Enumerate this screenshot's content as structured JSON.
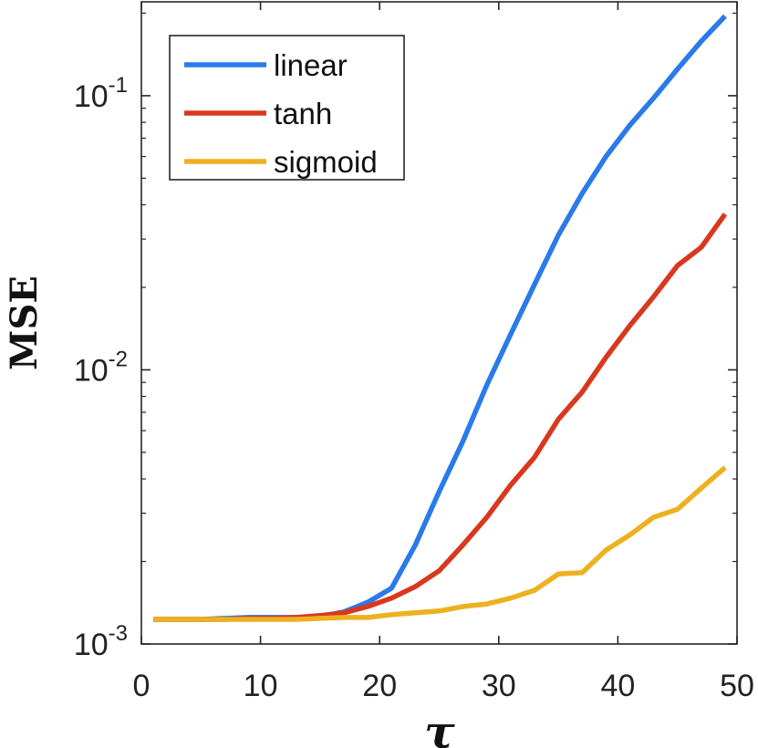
{
  "chart_data": {
    "type": "line",
    "title": "",
    "xlabel": "τ",
    "ylabel": "MSE",
    "xlim": [
      0,
      50
    ],
    "ylim": [
      0.001,
      0.22
    ],
    "yscale": "log",
    "x_ticks": [
      0,
      10,
      20,
      30,
      40,
      50
    ],
    "x_tick_labels": [
      "0",
      "10",
      "20",
      "30",
      "40",
      "50"
    ],
    "y_ticks": [
      0.001,
      0.01,
      0.1
    ],
    "y_tick_labels": [
      {
        "base": "10",
        "exp": "-3"
      },
      {
        "base": "10",
        "exp": "-2"
      },
      {
        "base": "10",
        "exp": "-1"
      }
    ],
    "grid": false,
    "legend_position": "top-left",
    "x": [
      1,
      3,
      5,
      7,
      9,
      11,
      13,
      15,
      17,
      19,
      21,
      23,
      25,
      27,
      29,
      31,
      33,
      35,
      37,
      39,
      41,
      43,
      45,
      47,
      49
    ],
    "series": [
      {
        "name": "linear",
        "color": "#2a7ae9",
        "values": [
          0.00123,
          0.00123,
          0.00123,
          0.00124,
          0.00125,
          0.00125,
          0.00125,
          0.00126,
          0.00131,
          0.00142,
          0.0016,
          0.0023,
          0.0036,
          0.0055,
          0.0088,
          0.0135,
          0.0205,
          0.031,
          0.044,
          0.06,
          0.078,
          0.098,
          0.125,
          0.158,
          0.195
        ]
      },
      {
        "name": "tanh",
        "color": "#d9381e",
        "values": [
          0.00123,
          0.00123,
          0.00123,
          0.00123,
          0.00124,
          0.00124,
          0.00125,
          0.00127,
          0.0013,
          0.00137,
          0.00147,
          0.00162,
          0.00185,
          0.0023,
          0.0029,
          0.0038,
          0.0048,
          0.0066,
          0.0083,
          0.0111,
          0.0145,
          0.0185,
          0.024,
          0.028,
          0.037
        ]
      },
      {
        "name": "sigmoid",
        "color": "#edb120",
        "values": [
          0.00123,
          0.00123,
          0.00123,
          0.00123,
          0.00123,
          0.00123,
          0.00123,
          0.00124,
          0.00125,
          0.00125,
          0.00128,
          0.0013,
          0.00132,
          0.00137,
          0.0014,
          0.00147,
          0.00157,
          0.0018,
          0.00182,
          0.0022,
          0.0025,
          0.0029,
          0.0031,
          0.0037,
          0.0044
        ]
      }
    ]
  }
}
